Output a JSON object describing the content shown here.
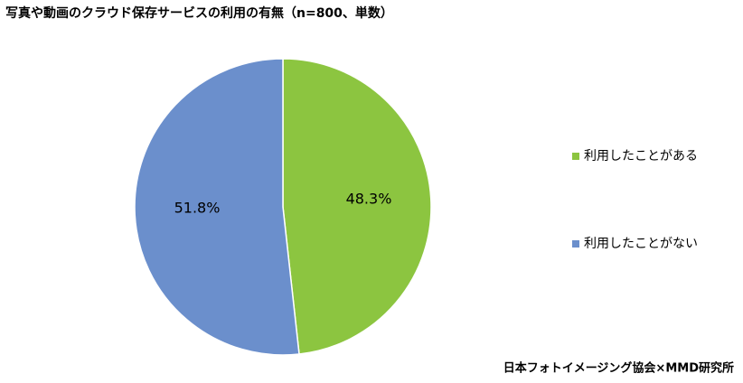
{
  "chart_data": {
    "type": "pie",
    "title": "写真や動画のクラウド保存サービスの利用の有無（n=800、単数）",
    "categories": [
      "利用したことがある",
      "利用したことがない"
    ],
    "values": [
      48.3,
      51.8
    ],
    "value_labels": [
      "48.3%",
      "51.8%"
    ],
    "colors": [
      "#8cc540",
      "#6b8fcc"
    ],
    "legend": "right",
    "source": "日本フォトイメージング協会×MMD研究所"
  }
}
